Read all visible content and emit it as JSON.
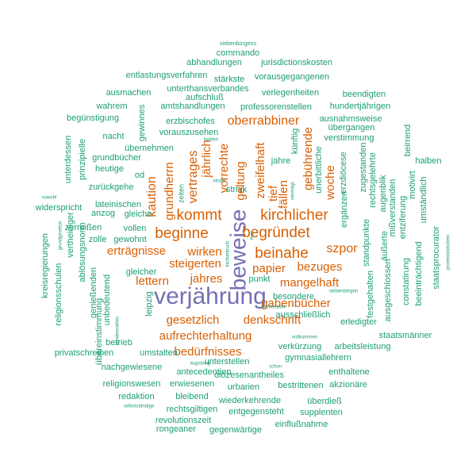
{
  "palette": {
    "large": "#7570b3",
    "medium": "#d95f02",
    "small": "#1b9e77"
  },
  "words": [
    {
      "text": "verjährung",
      "color": "large"
    },
    {
      "text": "beweise",
      "color": "large"
    },
    {
      "text": "kommt",
      "color": "medium"
    },
    {
      "text": "kirchlicher",
      "color": "medium"
    },
    {
      "text": "beginne",
      "color": "medium"
    },
    {
      "text": "begründet",
      "color": "medium"
    },
    {
      "text": "beinahe",
      "color": "medium"
    },
    {
      "text": "oberrabbiner",
      "color": "medium"
    },
    {
      "text": "vertrages",
      "color": "medium"
    },
    {
      "text": "grundherrn",
      "color": "medium"
    },
    {
      "text": "kaution",
      "color": "medium"
    },
    {
      "text": "jährlich",
      "color": "medium"
    },
    {
      "text": "vorrechte",
      "color": "medium"
    },
    {
      "text": "geltung",
      "color": "medium"
    },
    {
      "text": "zweifelhaft",
      "color": "medium"
    },
    {
      "text": "tief",
      "color": "medium"
    },
    {
      "text": "fällen",
      "color": "medium"
    },
    {
      "text": "gebührende",
      "color": "medium"
    },
    {
      "text": "woche",
      "color": "medium"
    },
    {
      "text": "erträgnisse",
      "color": "medium"
    },
    {
      "text": "wirken",
      "color": "medium"
    },
    {
      "text": "szpor",
      "color": "medium"
    },
    {
      "text": "steigerten",
      "color": "medium"
    },
    {
      "text": "papier",
      "color": "medium"
    },
    {
      "text": "bezuges",
      "color": "medium"
    },
    {
      "text": "lettern",
      "color": "medium"
    },
    {
      "text": "jahres",
      "color": "medium"
    },
    {
      "text": "mangelhaft",
      "color": "medium"
    },
    {
      "text": "gabenbücher",
      "color": "medium"
    },
    {
      "text": "gesetzlich",
      "color": "medium"
    },
    {
      "text": "denkschrift",
      "color": "medium"
    },
    {
      "text": "aufrechterhaltung",
      "color": "medium"
    },
    {
      "text": "bedürfnisses",
      "color": "medium"
    },
    {
      "text": "siebenbürgens",
      "color": "small"
    },
    {
      "text": "commando",
      "color": "small"
    },
    {
      "text": "abhandlungen",
      "color": "small"
    },
    {
      "text": "jurisdictionskosten",
      "color": "small"
    },
    {
      "text": "entlastungsverfahren",
      "color": "small"
    },
    {
      "text": "vorausgegangenen",
      "color": "small"
    },
    {
      "text": "stärkste",
      "color": "small"
    },
    {
      "text": "unterthansverbandes",
      "color": "small"
    },
    {
      "text": "ausmachen",
      "color": "small"
    },
    {
      "text": "aufschluß",
      "color": "small"
    },
    {
      "text": "verlegenheiten",
      "color": "small"
    },
    {
      "text": "beendigten",
      "color": "small"
    },
    {
      "text": "wahrem",
      "color": "small"
    },
    {
      "text": "amtshandlungen",
      "color": "small"
    },
    {
      "text": "professorenstellen",
      "color": "small"
    },
    {
      "text": "hundertjährigen",
      "color": "small"
    },
    {
      "text": "begünstigung",
      "color": "small"
    },
    {
      "text": "erzbischofes",
      "color": "small"
    },
    {
      "text": "ausnahmsweise",
      "color": "small"
    },
    {
      "text": "gewinnes",
      "color": "small"
    },
    {
      "text": "übergangen",
      "color": "small"
    },
    {
      "text": "nacht",
      "color": "small"
    },
    {
      "text": "vorauszusehen",
      "color": "small"
    },
    {
      "text": "verstimmung",
      "color": "small"
    },
    {
      "text": "beiden",
      "color": "small"
    },
    {
      "text": "übernehmen",
      "color": "small"
    },
    {
      "text": "unterdessen",
      "color": "small"
    },
    {
      "text": "prinzipielle",
      "color": "small"
    },
    {
      "text": "grundbücher",
      "color": "small"
    },
    {
      "text": "künftig",
      "color": "small"
    },
    {
      "text": "beirrend",
      "color": "small"
    },
    {
      "text": "halben",
      "color": "small"
    },
    {
      "text": "heutige",
      "color": "small"
    },
    {
      "text": "jahre",
      "color": "small"
    },
    {
      "text": "unerbittliche",
      "color": "small"
    },
    {
      "text": "erzdiöcese",
      "color": "small"
    },
    {
      "text": "zugestanden",
      "color": "small"
    },
    {
      "text": "rechtsgelehrte",
      "color": "small"
    },
    {
      "text": "od",
      "color": "small"
    },
    {
      "text": "zurückgehe",
      "color": "small"
    },
    {
      "text": "zeiten",
      "color": "small"
    },
    {
      "text": "strafe",
      "color": "small"
    },
    {
      "text": "vereinigt",
      "color": "small"
    },
    {
      "text": "strnik",
      "color": "small"
    },
    {
      "text": "sowohl",
      "color": "small"
    },
    {
      "text": "lateinischen",
      "color": "small"
    },
    {
      "text": "widerspricht",
      "color": "small"
    },
    {
      "text": "anzog",
      "color": "small"
    },
    {
      "text": "gleiche",
      "color": "small"
    },
    {
      "text": "augenblik",
      "color": "small"
    },
    {
      "text": "mißverstanden",
      "color": "small"
    },
    {
      "text": "entziferung",
      "color": "small"
    },
    {
      "text": "motivirt",
      "color": "small"
    },
    {
      "text": "umständlich",
      "color": "small"
    },
    {
      "text": "zerreißen",
      "color": "small"
    },
    {
      "text": "vollen",
      "color": "small"
    },
    {
      "text": "grundgesetze",
      "color": "small"
    },
    {
      "text": "vertheidiger",
      "color": "small"
    },
    {
      "text": "zolle",
      "color": "small"
    },
    {
      "text": "gewohnt",
      "color": "small"
    },
    {
      "text": "ergänzen",
      "color": "small"
    },
    {
      "text": "standpunkte",
      "color": "small"
    },
    {
      "text": "äußerte",
      "color": "small"
    },
    {
      "text": "kreisregierungen",
      "color": "small"
    },
    {
      "text": "ablösungsnorm",
      "color": "small"
    },
    {
      "text": "kirchenbuch",
      "color": "small"
    },
    {
      "text": "thor",
      "color": "small"
    },
    {
      "text": "gleicher",
      "color": "small"
    },
    {
      "text": "punkt",
      "color": "small"
    },
    {
      "text": "religionsschulen",
      "color": "small"
    },
    {
      "text": "genießenden",
      "color": "small"
    },
    {
      "text": "unbedeutend",
      "color": "small"
    },
    {
      "text": "besondere",
      "color": "small"
    },
    {
      "text": "siebenbürgen",
      "color": "small"
    },
    {
      "text": "festgehalten",
      "color": "small"
    },
    {
      "text": "ausgeschlossen",
      "color": "small"
    },
    {
      "text": "constatirung",
      "color": "small"
    },
    {
      "text": "beeinträchtigend",
      "color": "small"
    },
    {
      "text": "staatsprocurator",
      "color": "small"
    },
    {
      "text": "protestantischen",
      "color": "small"
    },
    {
      "text": "leipzig",
      "color": "small"
    },
    {
      "text": "konfession",
      "color": "small"
    },
    {
      "text": "ausschließlich",
      "color": "small"
    },
    {
      "text": "erledigter",
      "color": "small"
    },
    {
      "text": "übereinstimmung",
      "color": "small"
    },
    {
      "text": "bundesrathes",
      "color": "small"
    },
    {
      "text": "vollkommen",
      "color": "small"
    },
    {
      "text": "betrieb",
      "color": "small"
    },
    {
      "text": "verkürzung",
      "color": "small"
    },
    {
      "text": "arbeitsleistung",
      "color": "small"
    },
    {
      "text": "staatsmänner",
      "color": "small"
    },
    {
      "text": "privatschreiben",
      "color": "small"
    },
    {
      "text": "umstalten",
      "color": "small"
    },
    {
      "text": "unterstellen",
      "color": "small"
    },
    {
      "text": "gymnasiallehrern",
      "color": "small"
    },
    {
      "text": "nachgewiesene",
      "color": "small"
    },
    {
      "text": "antecedentien",
      "color": "small"
    },
    {
      "text": "schon",
      "color": "small"
    },
    {
      "text": "augsburg",
      "color": "small"
    },
    {
      "text": "diözesenantheiles",
      "color": "small"
    },
    {
      "text": "enthaltene",
      "color": "small"
    },
    {
      "text": "religionswesen",
      "color": "small"
    },
    {
      "text": "erwiesenen",
      "color": "small"
    },
    {
      "text": "urbarien",
      "color": "small"
    },
    {
      "text": "bestrittenen",
      "color": "small"
    },
    {
      "text": "akzionäre",
      "color": "small"
    },
    {
      "text": "redaktion",
      "color": "small"
    },
    {
      "text": "bleibend",
      "color": "small"
    },
    {
      "text": "wiederkehrende",
      "color": "small"
    },
    {
      "text": "überdieß",
      "color": "small"
    },
    {
      "text": "selbstständige",
      "color": "small"
    },
    {
      "text": "rechtsgiltigen",
      "color": "small"
    },
    {
      "text": "entgegensteht",
      "color": "small"
    },
    {
      "text": "supplenten",
      "color": "small"
    },
    {
      "text": "revolutionszeit",
      "color": "small"
    },
    {
      "text": "einflußnahme",
      "color": "small"
    },
    {
      "text": "rongeaner",
      "color": "small"
    },
    {
      "text": "gegenwärtige",
      "color": "small"
    }
  ]
}
